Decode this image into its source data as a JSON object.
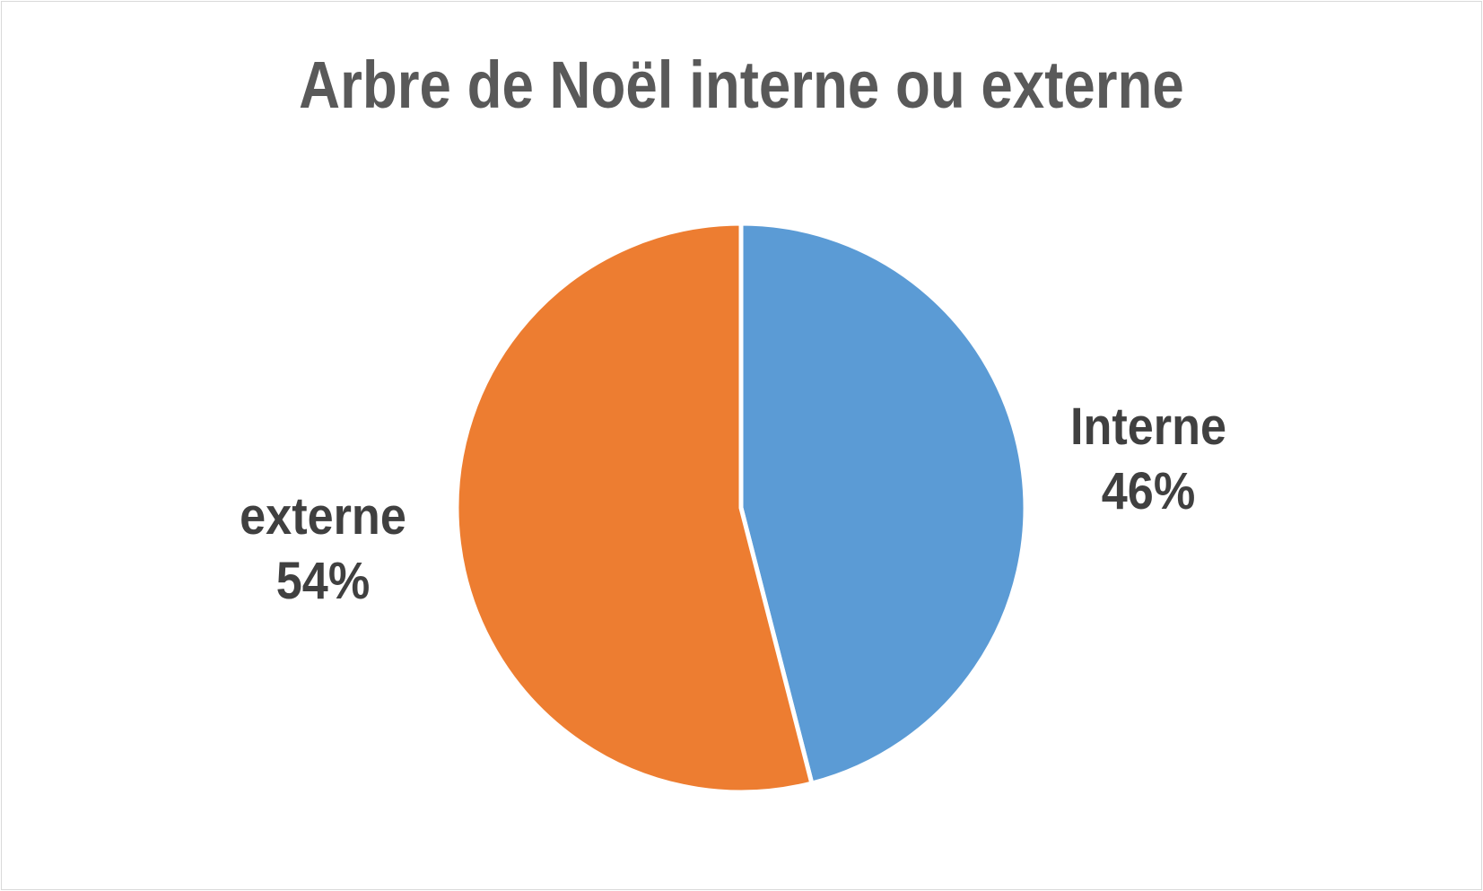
{
  "chart_data": {
    "type": "pie",
    "title": "Arbre de Noël interne ou externe",
    "categories": [
      "Interne",
      "externe"
    ],
    "values": [
      46,
      54
    ],
    "unit": "%",
    "colors": [
      "#5B9BD5",
      "#ED7D31"
    ],
    "labels": [
      {
        "name": "Interne",
        "value": "46%"
      },
      {
        "name": "externe",
        "value": "54%"
      }
    ],
    "legend": "none (data labels)",
    "start_angle": "12 o'clock, clockwise"
  }
}
